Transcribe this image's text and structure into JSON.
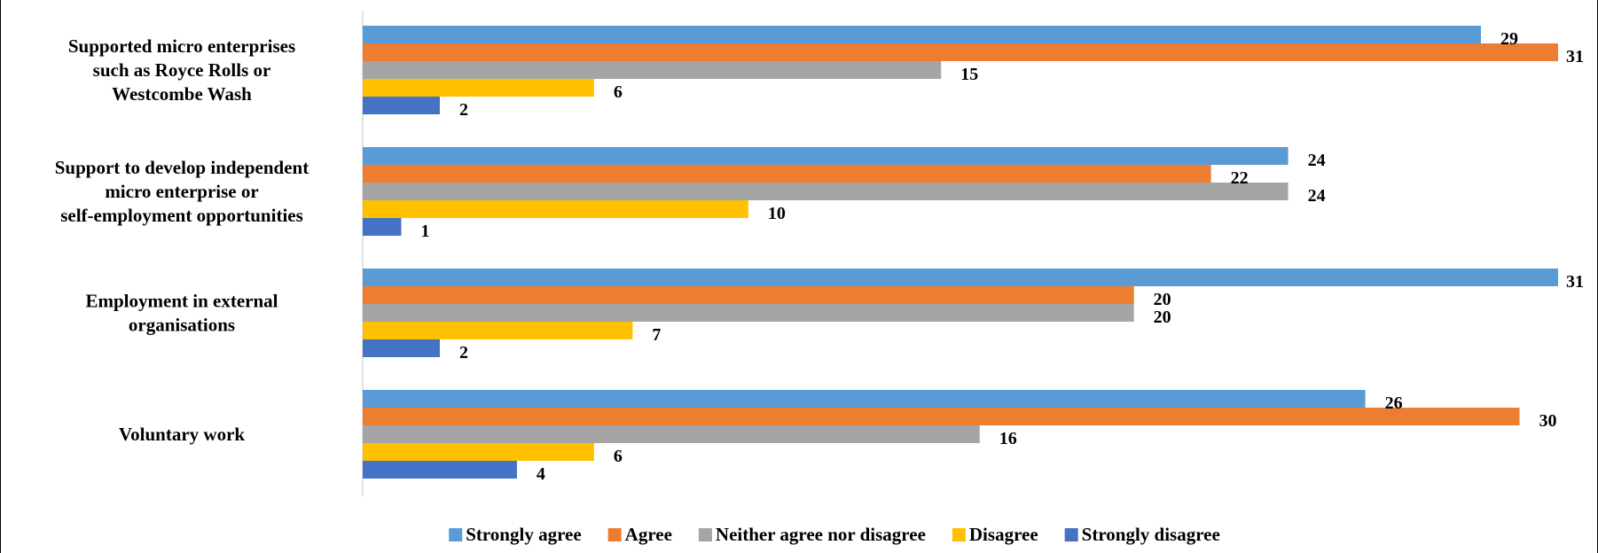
{
  "chart_data": {
    "type": "bar",
    "orientation": "horizontal",
    "categories": [
      "Supported micro enterprises such as Royce Rolls or Westcombe Wash",
      "Support to develop independent micro enterprise or self-employment opportunities",
      "Employment in external organisations",
      "Voluntary work"
    ],
    "category_lines": [
      [
        "Supported micro enterprises",
        "such as Royce Rolls or",
        "Westcombe Wash"
      ],
      [
        "Support to develop independent",
        "micro enterprise or",
        "self-employment opportunities"
      ],
      [
        "Employment in external",
        "organisations"
      ],
      [
        "Voluntary work"
      ]
    ],
    "series": [
      {
        "name": "Strongly agree",
        "color": "#5B9BD5",
        "values": [
          29,
          24,
          31,
          26
        ]
      },
      {
        "name": "Agree",
        "color": "#ED7D31",
        "values": [
          31,
          22,
          20,
          30
        ]
      },
      {
        "name": "Neither agree nor disagree",
        "color": "#A5A5A5",
        "values": [
          15,
          24,
          20,
          16
        ]
      },
      {
        "name": "Disagree",
        "color": "#FFC000",
        "values": [
          6,
          10,
          7,
          6
        ]
      },
      {
        "name": "Strongly disagree",
        "color": "#4472C4",
        "values": [
          2,
          1,
          2,
          4
        ]
      }
    ],
    "xlim": [
      0,
      31
    ],
    "grid": false,
    "data_labels": true,
    "legend": "bottom-center",
    "title": "",
    "xlabel": "",
    "ylabel": ""
  }
}
